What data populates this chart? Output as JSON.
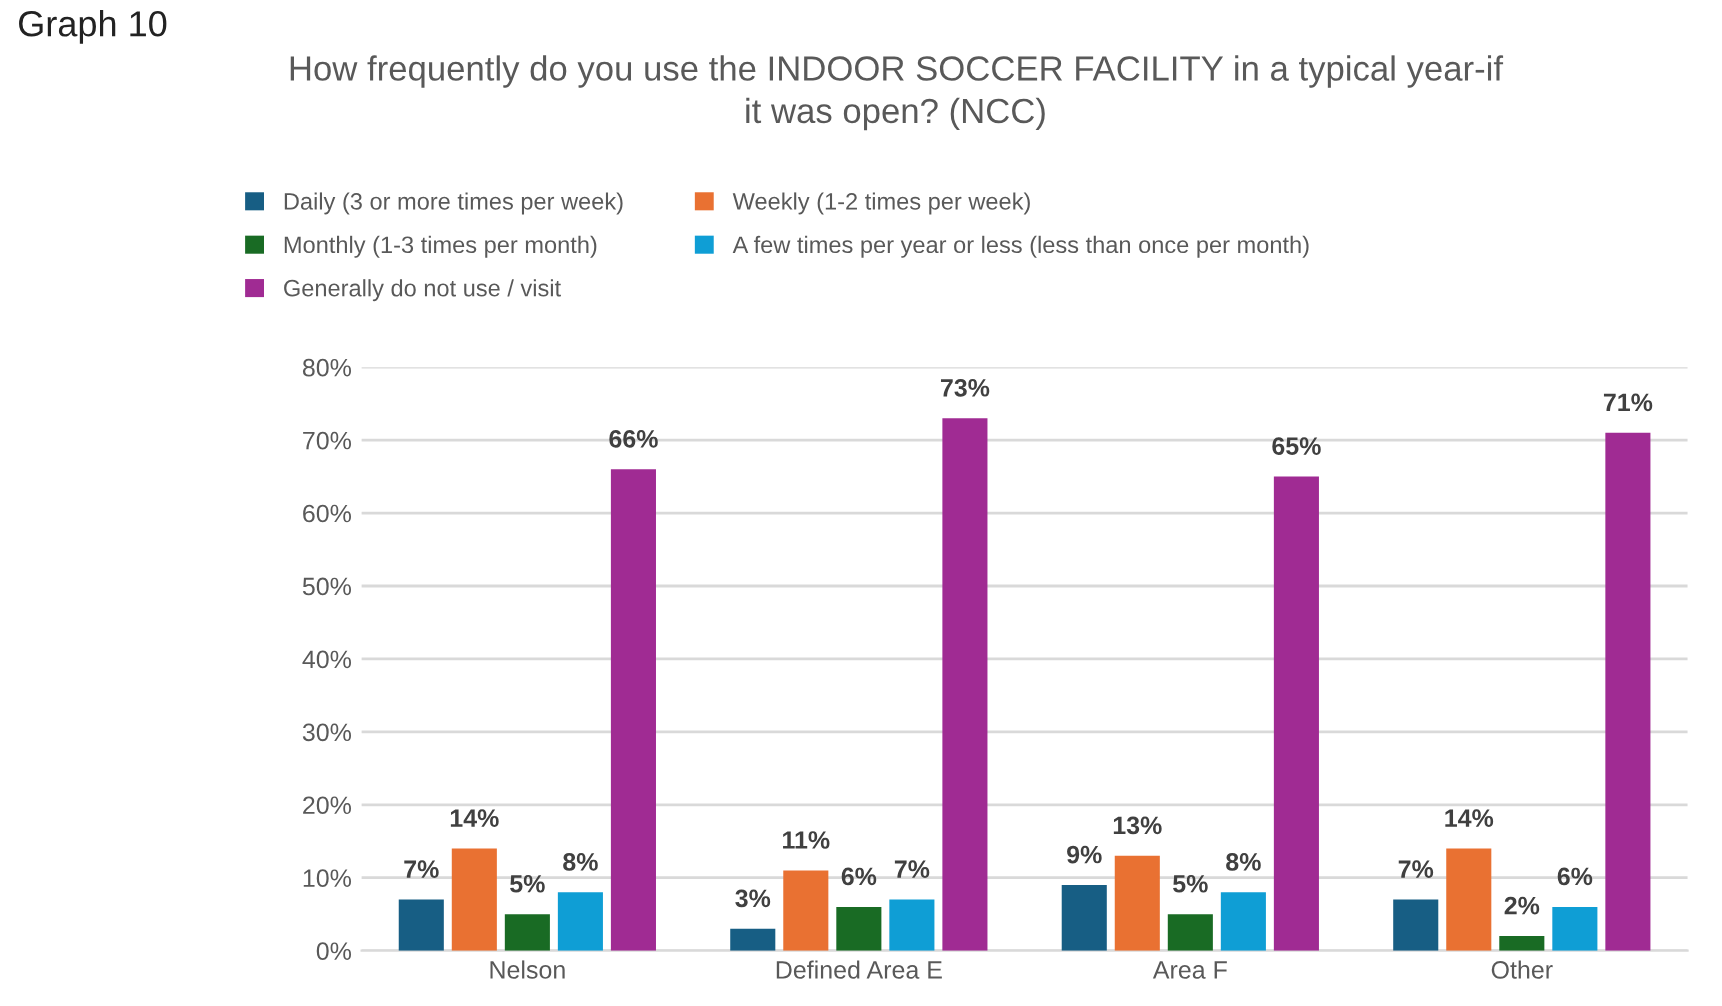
{
  "chart_data": {
    "type": "bar",
    "title": "How frequently do you use the INDOOR SOCCER FACILITY in a typical year-if\nit was open? (NCC)",
    "annotations": [
      "Graph 10"
    ],
    "categories": [
      "Nelson",
      "Defined Area E",
      "Area F",
      "Other"
    ],
    "series": [
      {
        "name": "Daily (3 or more times per week)",
        "color": "#175e84",
        "values": [
          7,
          3,
          9,
          7
        ],
        "value_labels": [
          "7%",
          "3%",
          "9%",
          "7%"
        ]
      },
      {
        "name": "Weekly (1-2 times per week)",
        "color": "#e97132",
        "values": [
          14,
          11,
          13,
          14
        ],
        "value_labels": [
          "14%",
          "11%",
          "13%",
          "14%"
        ]
      },
      {
        "name": "Monthly (1-3 times per month)",
        "color": "#196b24",
        "values": [
          5,
          6,
          5,
          2
        ],
        "value_labels": [
          "5%",
          "6%",
          "5%",
          "2%"
        ]
      },
      {
        "name": "A few times per year or less (less than once per month)",
        "color": "#0f9ed5",
        "values": [
          8,
          7,
          8,
          6
        ],
        "value_labels": [
          "8%",
          "7%",
          "8%",
          "6%"
        ]
      },
      {
        "name": "Generally do not use / visit",
        "color": "#a02b93",
        "values": [
          66,
          73,
          65,
          71
        ],
        "value_labels": [
          "66%",
          "73%",
          "65%",
          "71%"
        ]
      }
    ],
    "ylim": [
      0,
      80
    ],
    "yticks": [
      {
        "value": 0,
        "label": "0%"
      },
      {
        "value": 10,
        "label": "10%"
      },
      {
        "value": 20,
        "label": "20%"
      },
      {
        "value": 30,
        "label": "30%"
      },
      {
        "value": 40,
        "label": "40%"
      },
      {
        "value": 50,
        "label": "50%"
      },
      {
        "value": 60,
        "label": "60%"
      },
      {
        "value": 70,
        "label": "70%"
      },
      {
        "value": 80,
        "label": "80%"
      }
    ],
    "grid": "y",
    "legend": "top"
  }
}
